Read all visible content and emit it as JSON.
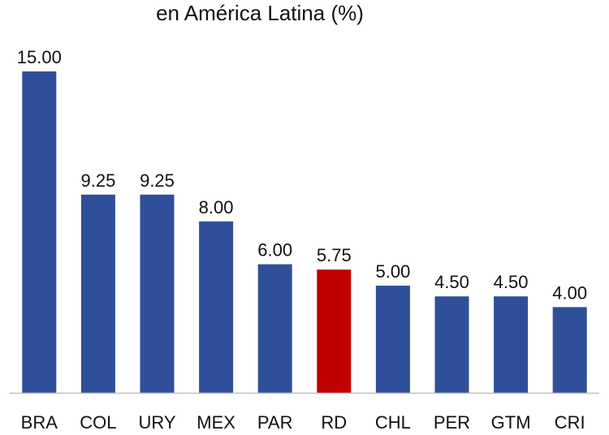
{
  "chart_data": {
    "type": "bar",
    "title": "en América Latina (%)",
    "xlabel": "",
    "ylabel": "",
    "categories": [
      "BRA",
      "COL",
      "URY",
      "MEX",
      "PAR",
      "RD",
      "CHL",
      "PER",
      "GTM",
      "CRI"
    ],
    "values": [
      15.0,
      9.25,
      9.25,
      8.0,
      6.0,
      5.75,
      5.0,
      4.5,
      4.5,
      4.0
    ],
    "value_labels": [
      "15.00",
      "9.25",
      "9.25",
      "8.00",
      "6.00",
      "5.75",
      "5.00",
      "4.50",
      "4.50",
      "4.00"
    ],
    "ylim": [
      0,
      15
    ],
    "grid": false,
    "legend": "none",
    "colors": {
      "default_bar": "#2f4f9a",
      "highlight_bar": "#c00000",
      "axis": "#bfbfbf",
      "text": "#111111"
    },
    "highlight_category": "RD"
  }
}
